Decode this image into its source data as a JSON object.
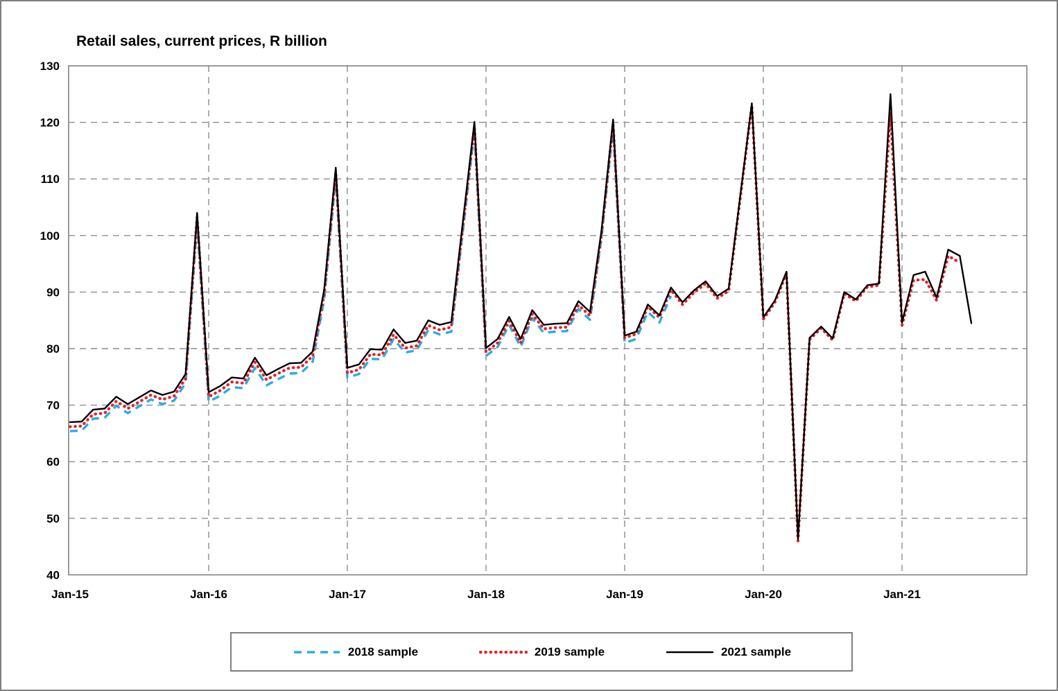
{
  "page": {
    "title": "Retail sales, current prices, R billion"
  },
  "legend": {
    "items": [
      {
        "label": "2018 sample",
        "color": "#29ADE3",
        "style": "dashed"
      },
      {
        "label": "2019 sample",
        "color": "#ED1C24",
        "style": "dotted"
      },
      {
        "label": "2021 sample",
        "color": "#000000",
        "style": "solid"
      }
    ]
  },
  "chart_data": {
    "type": "line",
    "title": "Retail sales, current prices, R billion",
    "xlabel": "",
    "ylabel": "",
    "ylim": [
      40,
      130
    ],
    "y_ticks": [
      40,
      50,
      60,
      70,
      80,
      90,
      100,
      110,
      120,
      130
    ],
    "x_tick_labels": [
      "Jan-15",
      "Jan-16",
      "Jan-17",
      "Jan-18",
      "Jan-19",
      "Jan-20",
      "Jan-21"
    ],
    "grid": true,
    "legend_position": "bottom",
    "months": [
      "Jan-15",
      "Feb-15",
      "Mar-15",
      "Apr-15",
      "May-15",
      "Jun-15",
      "Jul-15",
      "Aug-15",
      "Sep-15",
      "Oct-15",
      "Nov-15",
      "Dec-15",
      "Jan-16",
      "Feb-16",
      "Mar-16",
      "Apr-16",
      "May-16",
      "Jun-16",
      "Jul-16",
      "Aug-16",
      "Sep-16",
      "Oct-16",
      "Nov-16",
      "Dec-16",
      "Jan-17",
      "Feb-17",
      "Mar-17",
      "Apr-17",
      "May-17",
      "Jun-17",
      "Jul-17",
      "Aug-17",
      "Sep-17",
      "Oct-17",
      "Nov-17",
      "Dec-17",
      "Jan-18",
      "Feb-18",
      "Mar-18",
      "Apr-18",
      "May-18",
      "Jun-18",
      "Jul-18",
      "Aug-18",
      "Sep-18",
      "Oct-18",
      "Nov-18",
      "Dec-18",
      "Jan-19",
      "Feb-19",
      "Mar-19",
      "Apr-19",
      "May-19",
      "Jun-19",
      "Jul-19",
      "Aug-19",
      "Sep-19",
      "Oct-19",
      "Nov-19",
      "Dec-19",
      "Jan-20",
      "Feb-20",
      "Mar-20",
      "Apr-20",
      "May-20",
      "Jun-20",
      "Jul-20",
      "Aug-20",
      "Sep-20",
      "Oct-20",
      "Nov-20",
      "Dec-20",
      "Jan-21",
      "Feb-21",
      "Mar-21",
      "Apr-21",
      "May-21",
      "Jun-21",
      "Jul-21"
    ],
    "series": [
      {
        "name": "2018 sample",
        "color": "#29ADE3",
        "style": "dashed",
        "values": [
          65.4,
          65.5,
          67.6,
          67.8,
          69.9,
          68.6,
          69.8,
          71.0,
          70.2,
          70.8,
          73.9,
          102.3,
          70.6,
          71.7,
          73.2,
          73.0,
          76.6,
          73.5,
          74.6,
          75.6,
          75.7,
          77.7,
          88.8,
          110.4,
          74.9,
          75.5,
          78.2,
          78.1,
          81.7,
          79.3,
          79.7,
          83.3,
          82.5,
          83.0,
          100.9,
          118.6,
          78.7,
          80.3,
          84.2,
          80.3,
          85.4,
          82.8,
          83.0,
          83.1,
          87.0,
          85.1,
          99.7,
          119.2,
          81.0,
          81.7,
          86.5,
          84.6,
          89.3
        ]
      },
      {
        "name": "2019 sample",
        "color": "#ED1C24",
        "style": "dotted",
        "values": [
          66.2,
          66.3,
          68.4,
          68.6,
          70.7,
          69.4,
          70.6,
          71.8,
          71.0,
          71.6,
          74.7,
          103.2,
          71.5,
          72.6,
          74.1,
          73.9,
          77.6,
          74.5,
          75.6,
          76.6,
          76.7,
          78.7,
          89.7,
          111.2,
          75.7,
          76.3,
          79.0,
          78.9,
          82.5,
          80.1,
          80.5,
          84.1,
          83.3,
          83.8,
          101.6,
          119.3,
          79.4,
          81.0,
          84.9,
          81.0,
          86.1,
          83.5,
          83.7,
          83.8,
          87.7,
          85.8,
          100.3,
          119.8,
          81.9,
          82.6,
          87.4,
          85.5,
          90.4,
          87.8,
          89.9,
          91.5,
          88.9,
          90.2,
          106.6,
          123.0,
          85.2,
          88.2,
          93.3,
          46.0,
          81.6,
          83.6,
          81.5,
          89.7,
          88.4,
          90.9,
          91.2,
          121.8,
          84.1,
          92.1,
          92.2,
          88.5,
          96.4,
          95.2
        ]
      },
      {
        "name": "2021 sample",
        "color": "#000000",
        "style": "solid",
        "values": [
          67.0,
          67.1,
          69.2,
          69.4,
          71.5,
          70.2,
          71.4,
          72.6,
          71.8,
          72.4,
          75.5,
          104.0,
          72.3,
          73.4,
          74.9,
          74.7,
          78.4,
          75.3,
          76.4,
          77.4,
          77.5,
          79.5,
          90.5,
          112.0,
          76.6,
          77.2,
          79.9,
          79.8,
          83.4,
          81.0,
          81.4,
          85.0,
          84.2,
          84.7,
          102.5,
          120.1,
          80.1,
          81.7,
          85.6,
          81.7,
          86.8,
          84.2,
          84.4,
          84.5,
          88.4,
          86.5,
          101.0,
          120.5,
          82.3,
          83.0,
          87.8,
          85.9,
          90.8,
          88.2,
          90.3,
          91.9,
          89.3,
          90.6,
          107.0,
          123.4,
          85.5,
          88.5,
          93.6,
          46.3,
          81.9,
          83.9,
          81.8,
          90.0,
          88.7,
          91.2,
          91.5,
          125.0,
          84.6,
          93.0,
          93.6,
          89.0,
          97.5,
          96.4,
          84.5
        ]
      }
    ]
  }
}
